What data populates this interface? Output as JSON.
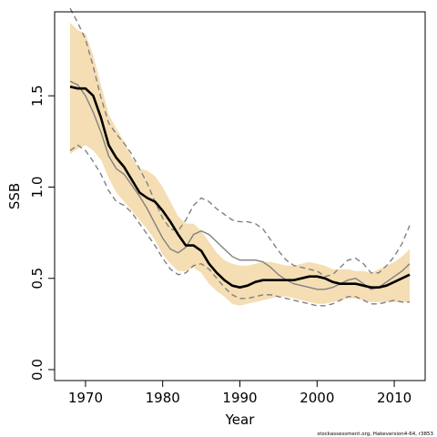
{
  "chart_data": {
    "type": "line",
    "title": "",
    "xlabel": "Year",
    "ylabel": "SSB",
    "xlim": [
      1966,
      2014
    ],
    "ylim": [
      -0.06,
      1.96
    ],
    "x_ticks": [
      1970,
      1980,
      1990,
      2000,
      2010
    ],
    "x_tick_labels": [
      "1970",
      "1980",
      "1990",
      "2000",
      "2010"
    ],
    "y_ticks": [
      0.0,
      0.5,
      1.0,
      1.5
    ],
    "y_tick_labels": [
      "0.0",
      "0.5",
      "1.0",
      "1.5"
    ],
    "grid": false,
    "legend": "none",
    "credit": "stockassessment.org, Hakeversion4-64, r3853",
    "colors": {
      "band": "#f5deb3",
      "estimate": "#000000",
      "alt_line": "#808080",
      "alt_band_edges": "#808080"
    },
    "x": [
      1968,
      1969,
      1970,
      1971,
      1972,
      1973,
      1974,
      1975,
      1976,
      1977,
      1978,
      1979,
      1980,
      1981,
      1982,
      1983,
      1984,
      1985,
      1986,
      1987,
      1988,
      1989,
      1990,
      1991,
      1992,
      1993,
      1994,
      1995,
      1996,
      1997,
      1998,
      1999,
      2000,
      2001,
      2002,
      2003,
      2004,
      2005,
      2006,
      2007,
      2008,
      2009,
      2010,
      2011,
      2012
    ],
    "series": [
      {
        "role": "band_upper",
        "values": [
          1.9,
          1.86,
          1.84,
          1.72,
          1.56,
          1.4,
          1.32,
          1.25,
          1.16,
          1.1,
          1.09,
          1.06,
          1.0,
          0.92,
          0.84,
          0.8,
          0.8,
          0.76,
          0.7,
          0.64,
          0.6,
          0.58,
          0.57,
          0.57,
          0.58,
          0.59,
          0.59,
          0.58,
          0.57,
          0.57,
          0.58,
          0.59,
          0.58,
          0.57,
          0.55,
          0.55,
          0.55,
          0.54,
          0.54,
          0.53,
          0.55,
          0.57,
          0.59,
          0.62,
          0.66
        ]
      },
      {
        "role": "band_lower",
        "values": [
          1.18,
          1.21,
          1.23,
          1.2,
          1.15,
          1.05,
          0.97,
          0.92,
          0.87,
          0.82,
          0.77,
          0.71,
          0.63,
          0.58,
          0.54,
          0.54,
          0.56,
          0.53,
          0.47,
          0.43,
          0.4,
          0.36,
          0.35,
          0.36,
          0.37,
          0.38,
          0.39,
          0.4,
          0.4,
          0.39,
          0.38,
          0.37,
          0.36,
          0.36,
          0.37,
          0.38,
          0.39,
          0.39,
          0.38,
          0.37,
          0.37,
          0.37,
          0.37,
          0.37,
          0.37
        ]
      },
      {
        "role": "estimate",
        "values": [
          1.55,
          1.54,
          1.54,
          1.5,
          1.38,
          1.23,
          1.16,
          1.11,
          1.04,
          0.97,
          0.94,
          0.92,
          0.87,
          0.81,
          0.74,
          0.68,
          0.68,
          0.65,
          0.58,
          0.53,
          0.49,
          0.46,
          0.45,
          0.46,
          0.48,
          0.49,
          0.49,
          0.49,
          0.49,
          0.49,
          0.5,
          0.51,
          0.51,
          0.5,
          0.48,
          0.47,
          0.47,
          0.47,
          0.46,
          0.45,
          0.45,
          0.46,
          0.48,
          0.5,
          0.52
        ]
      },
      {
        "role": "alt_estimate",
        "values": [
          1.58,
          1.56,
          1.5,
          1.41,
          1.3,
          1.17,
          1.1,
          1.07,
          1.01,
          0.95,
          0.88,
          0.8,
          0.72,
          0.66,
          0.64,
          0.67,
          0.74,
          0.76,
          0.74,
          0.7,
          0.66,
          0.62,
          0.6,
          0.6,
          0.6,
          0.59,
          0.56,
          0.52,
          0.49,
          0.47,
          0.46,
          0.45,
          0.44,
          0.44,
          0.45,
          0.47,
          0.49,
          0.5,
          0.47,
          0.44,
          0.45,
          0.48,
          0.51,
          0.54,
          0.58
        ]
      },
      {
        "role": "alt_upper",
        "values": [
          1.98,
          1.9,
          1.81,
          1.66,
          1.49,
          1.35,
          1.29,
          1.24,
          1.18,
          1.1,
          1.02,
          0.92,
          0.83,
          0.77,
          0.76,
          0.82,
          0.9,
          0.94,
          0.92,
          0.88,
          0.85,
          0.82,
          0.81,
          0.81,
          0.8,
          0.77,
          0.71,
          0.65,
          0.6,
          0.57,
          0.56,
          0.55,
          0.54,
          0.51,
          0.52,
          0.56,
          0.6,
          0.61,
          0.58,
          0.53,
          0.53,
          0.57,
          0.62,
          0.69,
          0.79
        ]
      },
      {
        "role": "alt_lower",
        "values": [
          1.2,
          1.23,
          1.2,
          1.14,
          1.07,
          0.98,
          0.92,
          0.9,
          0.86,
          0.8,
          0.74,
          0.68,
          0.61,
          0.55,
          0.52,
          0.53,
          0.57,
          0.58,
          0.55,
          0.5,
          0.45,
          0.41,
          0.39,
          0.39,
          0.4,
          0.41,
          0.41,
          0.4,
          0.39,
          0.38,
          0.37,
          0.36,
          0.35,
          0.35,
          0.36,
          0.38,
          0.4,
          0.4,
          0.38,
          0.36,
          0.36,
          0.37,
          0.38,
          0.37,
          0.37
        ]
      }
    ]
  }
}
